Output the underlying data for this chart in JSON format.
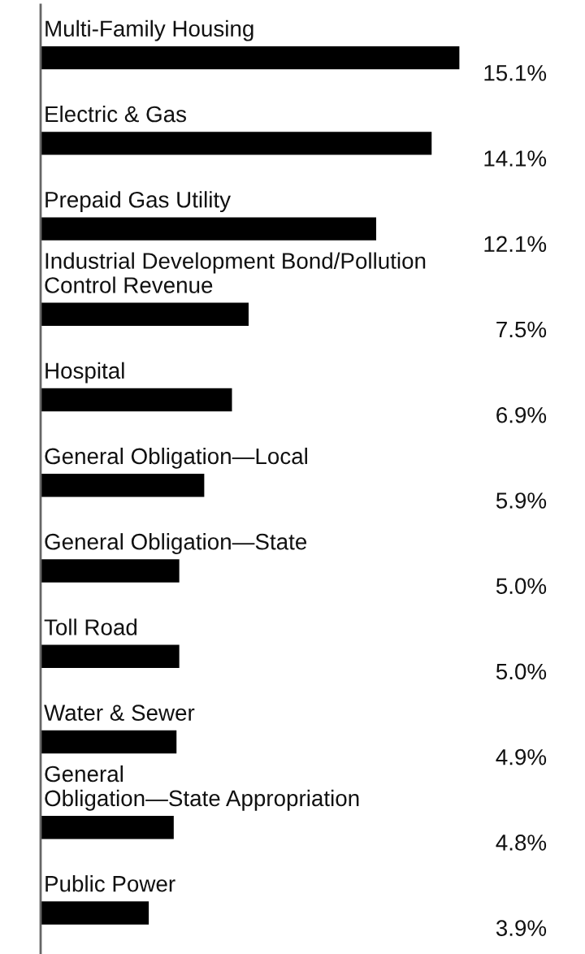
{
  "chart_data": {
    "type": "bar",
    "orientation": "horizontal",
    "categories": [
      "Multi-Family Housing",
      "Electric & Gas",
      "Prepaid Gas Utility",
      "Industrial Development Bond/Pollution\nControl Revenue",
      "Hospital",
      "General Obligation—Local",
      "General Obligation—State",
      "Toll Road",
      "Water & Sewer",
      "General\nObligation—State Appropriation",
      "Public Power"
    ],
    "values": [
      15.1,
      14.1,
      12.1,
      7.5,
      6.9,
      5.9,
      5.0,
      5.0,
      4.9,
      4.8,
      3.9
    ],
    "value_labels": [
      "15.1%",
      "14.1%",
      "12.1%",
      "7.5%",
      "6.9%",
      "5.9%",
      "5.0%",
      "5.0%",
      "4.9%",
      "4.8%",
      "3.9%"
    ],
    "color": "#000000"
  }
}
